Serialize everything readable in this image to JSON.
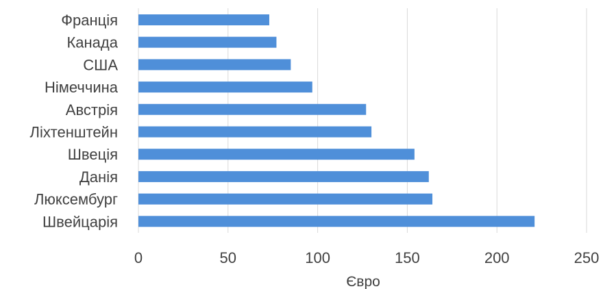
{
  "chart_data": {
    "type": "bar",
    "orientation": "horizontal",
    "categories": [
      "Франція",
      "Канада",
      "США",
      "Німеччина",
      "Австрія",
      "Ліхтенштейн",
      "Швеція",
      "Данія",
      "Люксембург",
      "Швейцарія"
    ],
    "series": [
      {
        "values": [
          73,
          77,
          85,
          97,
          127,
          130,
          154,
          162,
          164,
          221
        ]
      }
    ],
    "title": "",
    "xlabel": "Євро",
    "ylabel": "",
    "xlim": [
      0,
      250
    ],
    "xticks": [
      "0",
      "50",
      "100",
      "150",
      "200",
      "250"
    ],
    "grid": "vertical",
    "legend": "none",
    "bar_color": "#4f8fd9"
  }
}
